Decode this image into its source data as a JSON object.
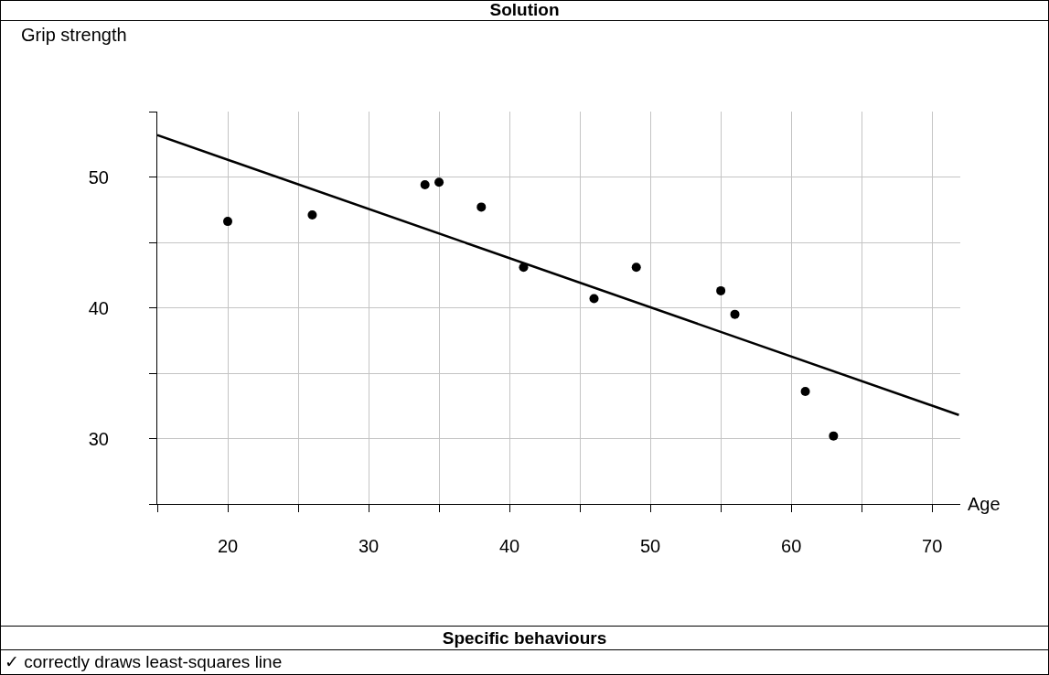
{
  "chart_data": {
    "type": "scatter",
    "title": "Solution",
    "xlabel": "Age",
    "ylabel": "Grip strength",
    "annotations": [
      "Specific behaviours",
      "✓  correctly draws least-squares line"
    ],
    "series": [
      {
        "color": "#000000",
        "marker": "circle",
        "x": [
          20,
          26,
          34,
          35,
          38,
          41,
          46,
          49,
          55,
          56,
          61,
          63
        ],
        "values": [
          46.6,
          47.1,
          49.4,
          49.6,
          47.7,
          43.1,
          40.7,
          43.1,
          41.3,
          39.5,
          33.6,
          30.2
        ]
      },
      {
        "type": "line",
        "color": "#000000",
        "line_style": "solid",
        "x": [
          15,
          71.9
        ],
        "values": [
          53.2,
          31.8
        ]
      }
    ],
    "xlim": [
      15,
      72
    ],
    "ylim": [
      25,
      55
    ],
    "xticks": [
      {
        "value": 15,
        "label": null
      },
      20,
      {
        "value": 25,
        "label": null
      },
      30,
      {
        "value": 35,
        "label": null
      },
      40,
      {
        "value": 45,
        "label": null
      },
      50,
      {
        "value": 55,
        "label": null
      },
      60,
      {
        "value": 65,
        "label": null
      },
      70
    ],
    "yticks": [
      {
        "value": 25,
        "label": null
      },
      30,
      {
        "value": 35,
        "label": null
      },
      40,
      {
        "value": 45,
        "label": null
      },
      50,
      {
        "value": 55,
        "label": null
      }
    ],
    "grid": true,
    "legend": false
  }
}
